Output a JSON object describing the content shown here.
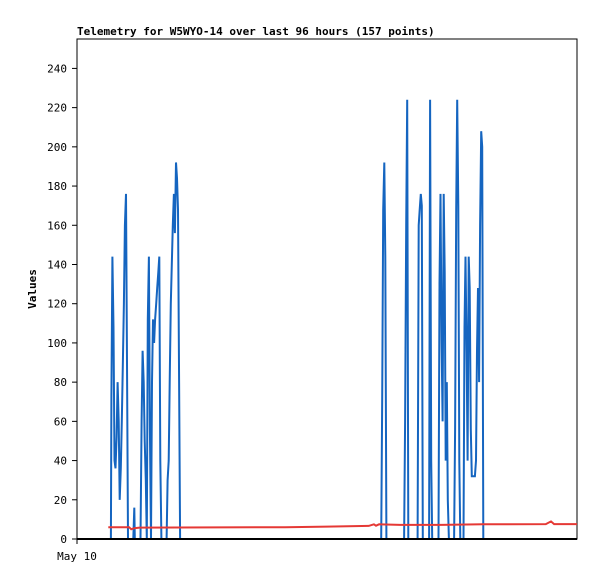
{
  "chart_data": {
    "type": "line",
    "title": "Telemetry for W5WYO-14 over last 96 hours (157 points)",
    "ylabel": "Values",
    "xlabel": "",
    "ylim": [
      0,
      255
    ],
    "y_ticks": [
      0,
      20,
      40,
      60,
      80,
      100,
      120,
      140,
      160,
      180,
      200,
      220,
      240
    ],
    "x_tick_labels": [
      {
        "hour": 0,
        "label": "May 10"
      }
    ],
    "xlim_hours": [
      0,
      96
    ],
    "grid": false,
    "series": [
      {
        "color": "#1565c0",
        "points": [
          [
            6.0,
            0
          ],
          [
            6.5,
            0
          ],
          [
            6.6,
            72
          ],
          [
            6.8,
            144
          ],
          [
            7.0,
            108
          ],
          [
            7.2,
            40
          ],
          [
            7.4,
            36
          ],
          [
            7.6,
            52
          ],
          [
            7.8,
            80
          ],
          [
            8.0,
            60
          ],
          [
            8.2,
            20
          ],
          [
            8.4,
            36
          ],
          [
            8.6,
            60
          ],
          [
            8.8,
            88
          ],
          [
            9.0,
            120
          ],
          [
            9.2,
            160
          ],
          [
            9.4,
            176
          ],
          [
            9.6,
            90
          ],
          [
            9.8,
            0
          ],
          [
            10.8,
            0
          ],
          [
            11.0,
            16
          ],
          [
            11.1,
            0
          ],
          [
            12.2,
            0
          ],
          [
            12.4,
            60
          ],
          [
            12.6,
            96
          ],
          [
            12.8,
            80
          ],
          [
            13.0,
            50
          ],
          [
            13.2,
            30
          ],
          [
            13.4,
            0
          ],
          [
            13.6,
            112
          ],
          [
            13.8,
            144
          ],
          [
            14.0,
            56
          ],
          [
            14.2,
            0
          ],
          [
            14.4,
            80
          ],
          [
            14.6,
            112
          ],
          [
            14.8,
            100
          ],
          [
            15.0,
            112
          ],
          [
            15.2,
            120
          ],
          [
            15.4,
            128
          ],
          [
            15.6,
            136
          ],
          [
            15.8,
            144
          ],
          [
            16.0,
            40
          ],
          [
            16.2,
            0
          ],
          [
            17.2,
            0
          ],
          [
            17.4,
            30
          ],
          [
            17.6,
            40
          ],
          [
            17.8,
            80
          ],
          [
            18.0,
            120
          ],
          [
            18.2,
            140
          ],
          [
            18.4,
            160
          ],
          [
            18.6,
            176
          ],
          [
            18.8,
            156
          ],
          [
            19.0,
            192
          ],
          [
            19.2,
            184
          ],
          [
            19.4,
            168
          ],
          [
            19.6,
            80
          ],
          [
            19.8,
            0
          ],
          [
            58.4,
            0
          ],
          [
            58.6,
            72
          ],
          [
            58.8,
            168
          ],
          [
            59.0,
            192
          ],
          [
            59.2,
            144
          ],
          [
            59.4,
            0
          ],
          [
            62.8,
            0
          ],
          [
            63.0,
            60
          ],
          [
            63.2,
            160
          ],
          [
            63.4,
            224
          ],
          [
            63.6,
            0
          ],
          [
            65.4,
            0
          ],
          [
            65.6,
            160
          ],
          [
            65.8,
            168
          ],
          [
            66.0,
            176
          ],
          [
            66.2,
            170
          ],
          [
            66.4,
            0
          ],
          [
            67.6,
            0
          ],
          [
            67.8,
            224
          ],
          [
            68.0,
            40
          ],
          [
            68.2,
            0
          ],
          [
            69.4,
            0
          ],
          [
            69.6,
            130
          ],
          [
            69.8,
            176
          ],
          [
            70.0,
            100
          ],
          [
            70.2,
            60
          ],
          [
            70.4,
            176
          ],
          [
            70.6,
            136
          ],
          [
            70.8,
            40
          ],
          [
            71.0,
            80
          ],
          [
            71.2,
            20
          ],
          [
            71.4,
            0
          ],
          [
            72.4,
            0
          ],
          [
            72.6,
            56
          ],
          [
            72.8,
            168
          ],
          [
            73.0,
            224
          ],
          [
            73.2,
            170
          ],
          [
            73.4,
            40
          ],
          [
            73.6,
            0
          ],
          [
            74.2,
            0
          ],
          [
            74.4,
            108
          ],
          [
            74.6,
            144
          ],
          [
            74.8,
            96
          ],
          [
            75.0,
            40
          ],
          [
            75.2,
            144
          ],
          [
            75.4,
            128
          ],
          [
            75.6,
            56
          ],
          [
            75.8,
            32
          ],
          [
            76.4,
            32
          ],
          [
            76.6,
            40
          ],
          [
            76.8,
            96
          ],
          [
            77.0,
            128
          ],
          [
            77.2,
            80
          ],
          [
            77.4,
            160
          ],
          [
            77.6,
            208
          ],
          [
            77.8,
            200
          ],
          [
            78.0,
            0
          ]
        ]
      },
      {
        "color": "#e53935",
        "points": [
          [
            6.0,
            6
          ],
          [
            10.0,
            6
          ],
          [
            10.4,
            5
          ],
          [
            11.0,
            5.5
          ],
          [
            12.0,
            5.8
          ],
          [
            40.0,
            6
          ],
          [
            48.0,
            6.3
          ],
          [
            56.0,
            6.7
          ],
          [
            57.0,
            7.5
          ],
          [
            57.4,
            6.8
          ],
          [
            58.0,
            7.5
          ],
          [
            62.0,
            7.2
          ],
          [
            70.0,
            7.2
          ],
          [
            78.0,
            7.5
          ],
          [
            90.0,
            7.6
          ],
          [
            91.0,
            9
          ],
          [
            91.6,
            7.6
          ],
          [
            96.0,
            7.6
          ]
        ]
      }
    ]
  }
}
